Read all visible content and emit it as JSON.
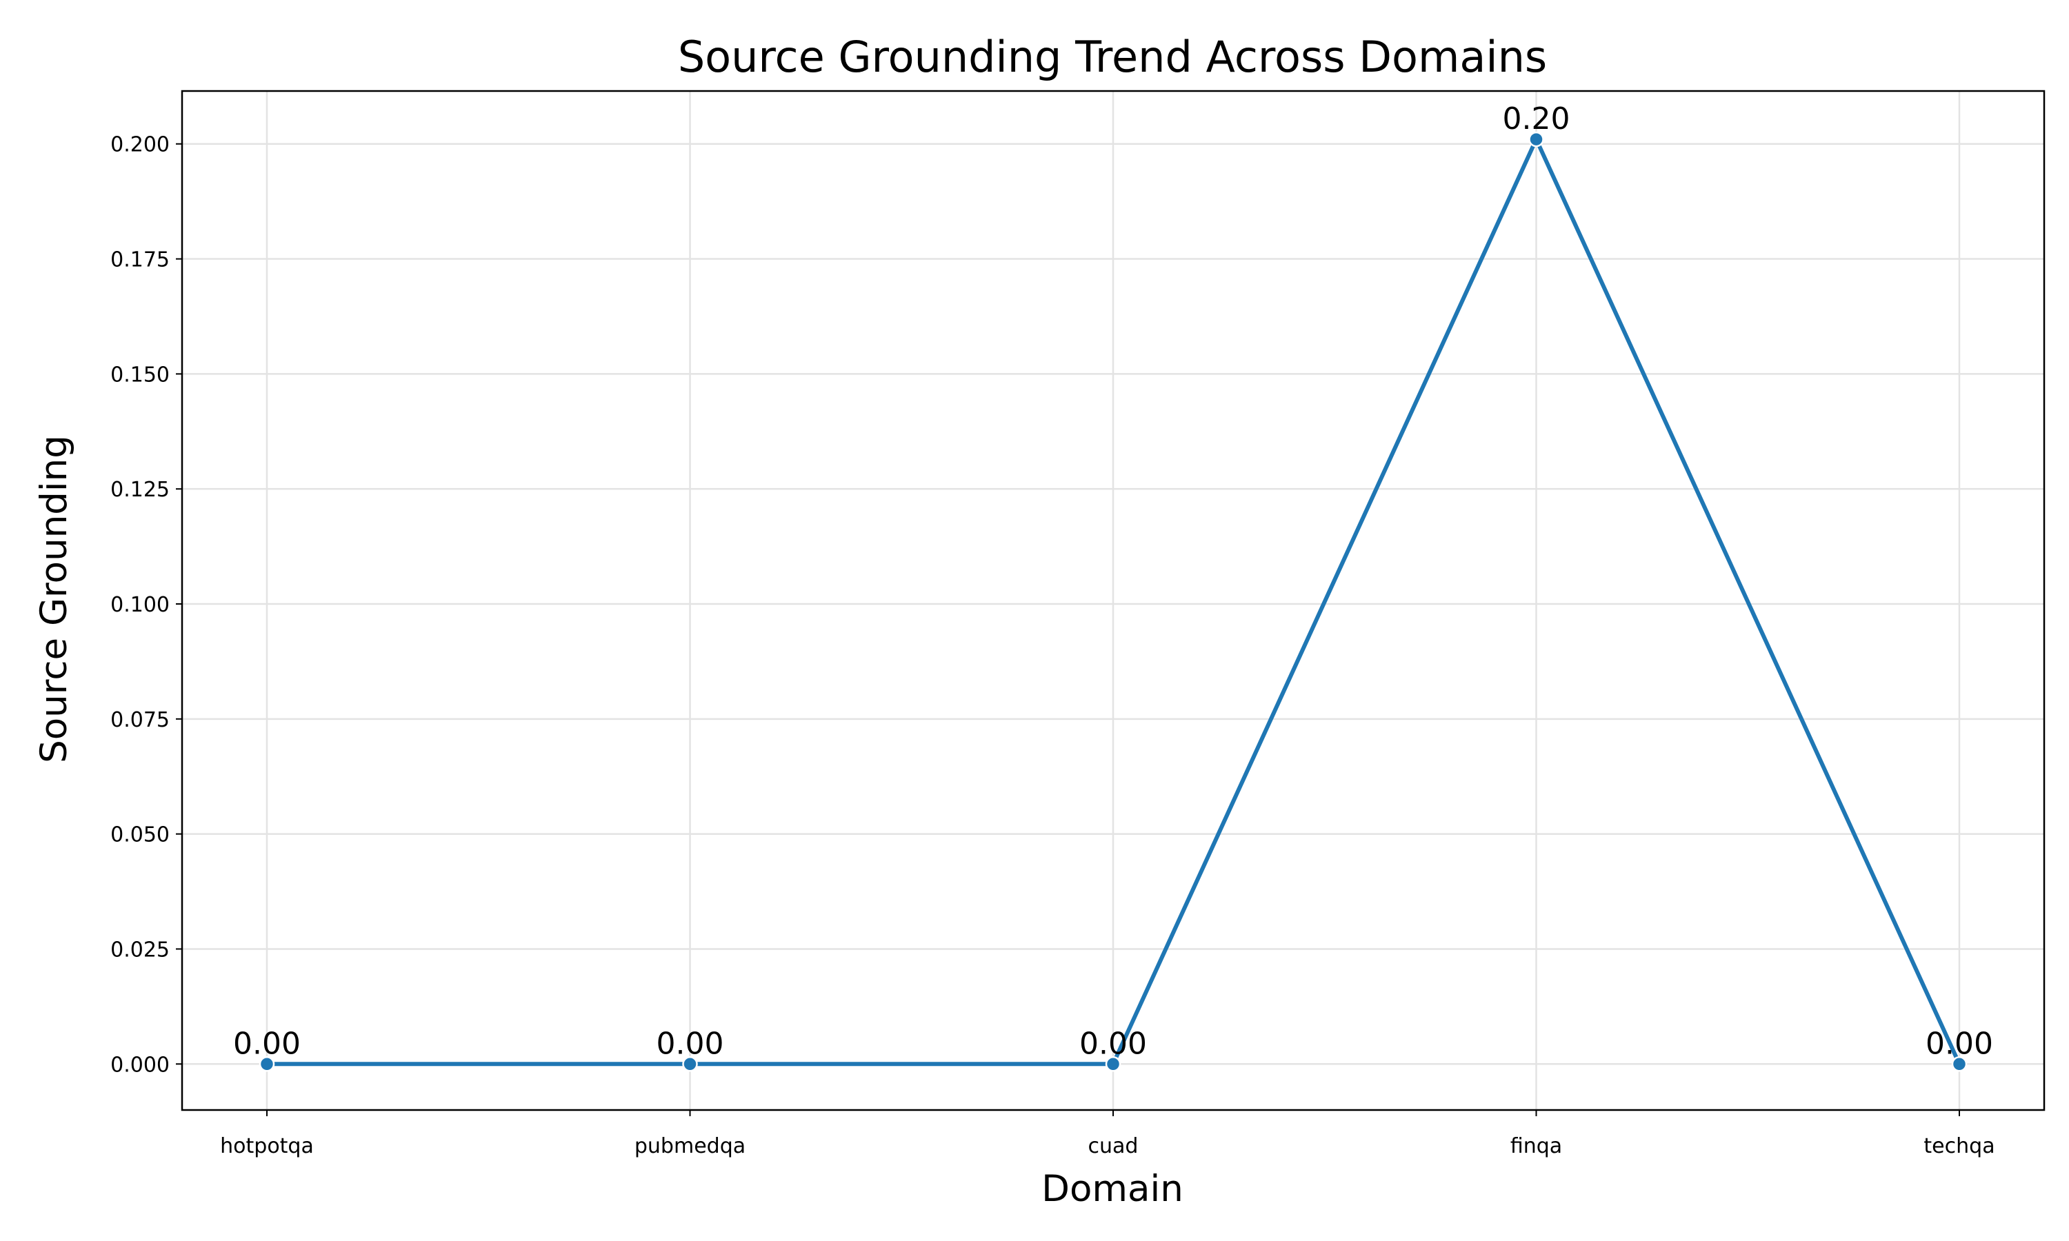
{
  "chart_data": {
    "type": "line",
    "title": "Source Grounding Trend Across Domains",
    "xlabel": "Domain",
    "ylabel": "Source Grounding",
    "categories": [
      "hotpotqa",
      "pubmedqa",
      "cuad",
      "finqa",
      "techqa"
    ],
    "series": [
      {
        "values": [
          0.0,
          0.0,
          0.0,
          0.201,
          0.0
        ]
      }
    ],
    "data_labels": [
      "0.00",
      "0.00",
      "0.00",
      "0.20",
      "0.00"
    ],
    "y_ticks": [
      "0.000",
      "0.025",
      "0.050",
      "0.075",
      "0.100",
      "0.125",
      "0.150",
      "0.175",
      "0.200"
    ],
    "ylim": [
      -0.01,
      0.2115
    ],
    "grid": true,
    "legend": "none",
    "colors": {
      "line": "#1f77b4"
    }
  }
}
